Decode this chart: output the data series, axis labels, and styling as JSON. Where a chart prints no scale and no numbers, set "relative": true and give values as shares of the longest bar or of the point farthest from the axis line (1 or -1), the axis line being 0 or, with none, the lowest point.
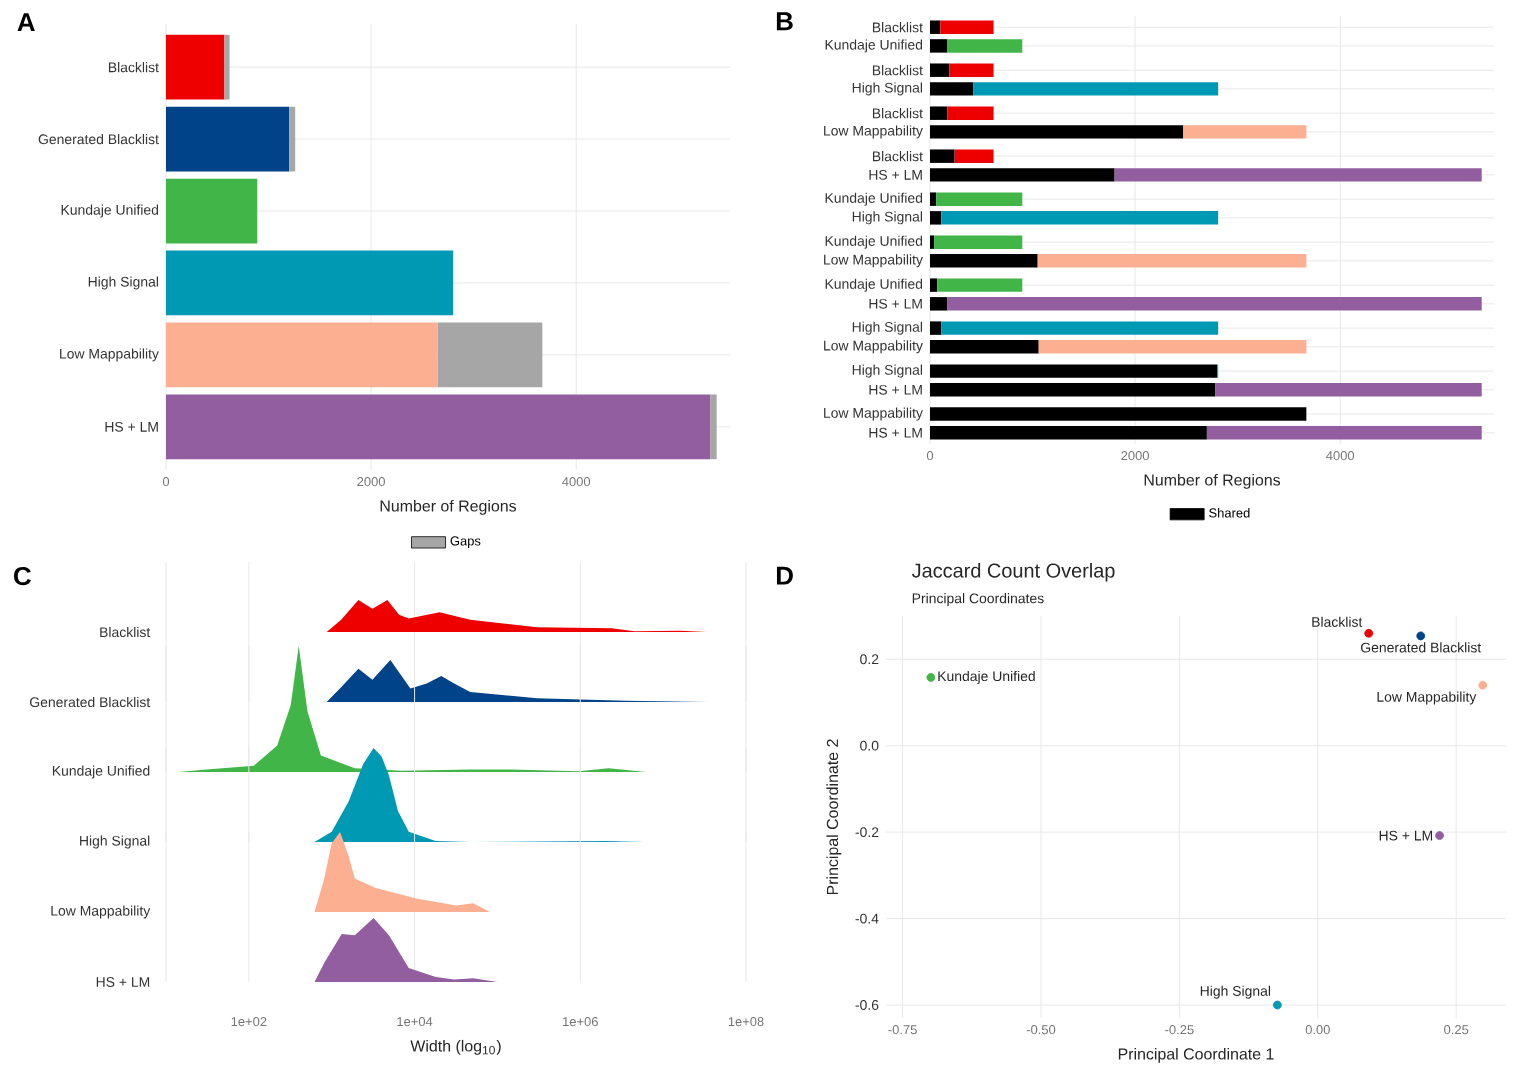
{
  "chart_data": [
    {
      "type": "bar",
      "orientation": "horizontal",
      "stacked": true,
      "categories": [
        "Blacklist",
        "Generated Blacklist",
        "Kundaje Unified",
        "High Signal",
        "Low Mappability",
        "HS + LM"
      ],
      "series": [
        {
          "colors": [
            "#ee0000",
            "#004388",
            "#41b547",
            "#0099b4",
            "#fdaf91",
            "#925e9f"
          ],
          "values": [
            570,
            1200,
            890,
            2800,
            2650,
            5310
          ]
        },
        {
          "name": "Gaps",
          "color": "#a6a6a6",
          "values": [
            50,
            60,
            null,
            null,
            1020,
            60
          ]
        }
      ],
      "xlabel": "Number of Regions",
      "xlim": [
        0,
        5500
      ],
      "xticks": [
        0,
        2000,
        4000
      ],
      "grid": true,
      "legend": "bottom",
      "annotations": [
        "A"
      ]
    },
    {
      "type": "bar",
      "orientation": "horizontal",
      "stacked": true,
      "categories": [
        "Blacklist",
        "Kundaje Unified",
        "Blacklist",
        "High Signal",
        "Blacklist",
        "Low Mappability",
        "Blacklist",
        "HS + LM",
        "Kundaje Unified",
        "High Signal",
        "Kundaje Unified",
        "Low Mappability",
        "Kundaje Unified",
        "HS + LM",
        "High Signal",
        "Low Mappability",
        "High Signal",
        "HS + LM",
        "Low Mappability",
        "HS + LM"
      ],
      "series": [
        {
          "name": "Shared",
          "color": "#000000",
          "values": [
            100,
            170,
            190,
            420,
            170,
            2470,
            240,
            1800,
            60,
            110,
            40,
            1050,
            70,
            170,
            110,
            1060,
            2800,
            2780,
            3670,
            2700
          ]
        },
        {
          "colors": [
            "#ee0000",
            "#41b547",
            "#ee0000",
            "#0099b4",
            "#ee0000",
            "#fdaf91",
            "#ee0000",
            "#925e9f",
            "#41b547",
            "#0099b4",
            "#41b547",
            "#fdaf91",
            "#41b547",
            "#925e9f",
            "#0099b4",
            "#fdaf91",
            "#0099b4",
            "#925e9f",
            "#fdaf91",
            "#925e9f"
          ],
          "values": [
            520,
            730,
            430,
            2390,
            450,
            1200,
            380,
            3580,
            840,
            2700,
            860,
            2620,
            830,
            5210,
            2700,
            2610,
            10,
            2600,
            0,
            2680
          ]
        }
      ],
      "xlabel": "Number of Regions",
      "xlim": [
        0,
        5500
      ],
      "xticks": [
        0,
        2000,
        4000
      ],
      "grid": true,
      "legend": "bottom",
      "annotations": [
        "B"
      ]
    },
    {
      "type": "area",
      "relative": true,
      "log": "x",
      "xlim": [
        10,
        100000000
      ],
      "xticks": [
        {
          "value": 10,
          "label": null
        },
        {
          "value": 100,
          "label": null
        },
        {
          "value": 10000,
          "label": null
        },
        {
          "value": 1000000,
          "label": null
        },
        {
          "value": 100000000,
          "label": null
        }
      ],
      "grid": "x",
      "tick_labels": false,
      "ylabel": "Blacklist",
      "series": [
        {
          "color": "#ee0000",
          "x": [
            870,
            1300,
            2100,
            3100,
            4700,
            6500,
            8500,
            20000,
            47000,
            300000,
            2400000,
            4500000,
            16000000,
            34000000
          ],
          "values": [
            0,
            0.38,
            1,
            0.73,
            1,
            0.54,
            0.42,
            0.62,
            0.38,
            0.15,
            0.12,
            0.02,
            0.04,
            0
          ]
        }
      ],
      "annotations": [
        "C"
      ]
    },
    {
      "type": "area",
      "relative": true,
      "log": "x",
      "xlim": [
        10,
        100000000
      ],
      "xticks": [
        {
          "value": 10,
          "label": null
        },
        {
          "value": 100,
          "label": null
        },
        {
          "value": 10000,
          "label": null
        },
        {
          "value": 1000000,
          "label": null
        },
        {
          "value": 100000000,
          "label": null
        }
      ],
      "grid": "x",
      "tick_labels": false,
      "ylabel": "Generated Blacklist",
      "series": [
        {
          "color": "#004388",
          "x": [
            870,
            1300,
            2100,
            3100,
            5100,
            8900,
            14000,
            21000,
            30000,
            47000,
            300000,
            3500000,
            34000000
          ],
          "values": [
            0,
            0.35,
            0.79,
            0.53,
            1,
            0.32,
            0.44,
            0.62,
            0.44,
            0.24,
            0.09,
            0.03,
            0
          ]
        }
      ]
    },
    {
      "type": "area",
      "relative": true,
      "log": "x",
      "xlim": [
        10,
        100000000
      ],
      "xticks": [
        {
          "value": 10,
          "label": null
        },
        {
          "value": 100,
          "label": null
        },
        {
          "value": 10000,
          "label": null
        },
        {
          "value": 1000000,
          "label": null
        },
        {
          "value": 100000000,
          "label": null
        }
      ],
      "grid": "x",
      "tick_labels": false,
      "ylabel": "Kundaje Unified",
      "series": [
        {
          "color": "#41b547",
          "x": [
            14,
            31,
            115,
            220,
            320,
            400,
            510,
            740,
            1900,
            7000,
            47000,
            145000,
            950000,
            2200000,
            6200000
          ],
          "values": [
            0,
            0.02,
            0.05,
            0.21,
            0.53,
            1,
            0.48,
            0.13,
            0.03,
            0.01,
            0.02,
            0.02,
            0.005,
            0.03,
            0
          ]
        }
      ]
    },
    {
      "type": "area",
      "relative": true,
      "log": "x",
      "xlim": [
        10,
        100000000
      ],
      "xticks": [
        {
          "value": 10,
          "label": null
        },
        {
          "value": 100,
          "label": null
        },
        {
          "value": 10000,
          "label": null
        },
        {
          "value": 1000000,
          "label": null
        },
        {
          "value": 100000000,
          "label": null
        }
      ],
      "grid": "x",
      "tick_labels": false,
      "ylabel": "High Signal",
      "series": [
        {
          "color": "#0099b4",
          "x": [
            620,
            1000,
            1600,
            2400,
            3200,
            4000,
            4900,
            6300,
            8500,
            18000,
            47000,
            2000000,
            6000000
          ],
          "values": [
            0,
            0.11,
            0.43,
            0.83,
            1,
            0.91,
            0.71,
            0.33,
            0.11,
            0.01,
            0,
            0.01,
            0
          ]
        }
      ]
    },
    {
      "type": "area",
      "relative": true,
      "log": "x",
      "xlim": [
        10,
        100000000
      ],
      "xticks": [
        {
          "value": 10,
          "label": null
        },
        {
          "value": 100,
          "label": null
        },
        {
          "value": 10000,
          "label": null
        },
        {
          "value": 1000000,
          "label": null
        },
        {
          "value": 100000000,
          "label": null
        }
      ],
      "grid": "x",
      "tick_labels": false,
      "ylabel": "Low Mappability",
      "series": [
        {
          "color": "#fdaf91",
          "x": [
            620,
            800,
            1000,
            1260,
            1600,
            1900,
            3400,
            10500,
            32000,
            51000,
            81000
          ],
          "values": [
            0,
            0.39,
            0.86,
            1,
            0.7,
            0.42,
            0.3,
            0.17,
            0.08,
            0.11,
            0
          ]
        }
      ]
    },
    {
      "type": "area",
      "relative": true,
      "log": "x",
      "xlim": [
        10,
        100000000
      ],
      "xticks": [
        {
          "value": 10,
          "label": null
        },
        {
          "value": 100,
          "label": "1e+02"
        },
        {
          "value": 10000,
          "label": "1e+04"
        },
        {
          "value": 1000000,
          "label": "1e+06"
        },
        {
          "value": 100000000,
          "label": "1e+08"
        }
      ],
      "grid": "x",
      "tick_labels": "x",
      "ylabel": "HS + LM",
      "xlabel": "Width (log$_{10}$)",
      "series": [
        {
          "color": "#925e9f",
          "x": [
            620,
            820,
            1320,
            1900,
            3200,
            4900,
            8500,
            18000,
            30000,
            51000,
            100000
          ],
          "values": [
            0,
            0.31,
            0.75,
            0.73,
            1,
            0.73,
            0.22,
            0.08,
            0.04,
            0.06,
            0
          ]
        }
      ]
    },
    {
      "type": "scatter",
      "title": "Jaccard Count Overlap",
      "subtitle": "Principal Coordinates",
      "xlabel": "Principal Coordinate 1",
      "ylabel": "Principal Coordinate 2",
      "xlim": [
        -0.78,
        0.34
      ],
      "ylim": [
        -0.63,
        0.3
      ],
      "xticks": [
        {
          "value": -0.75,
          "label": "-0.75"
        },
        {
          "value": -0.5,
          "label": "-0.50"
        },
        {
          "value": -0.25,
          "label": "-0.25"
        },
        {
          "value": 0,
          "label": "0.00"
        },
        {
          "value": 0.25,
          "label": "0.25"
        }
      ],
      "yticks": [
        {
          "value": -0.6,
          "label": "-0.6"
        },
        {
          "value": -0.4,
          "label": "-0.4"
        },
        {
          "value": -0.2,
          "label": "-0.2"
        },
        {
          "value": 0,
          "label": "0.0"
        },
        {
          "value": 0.2,
          "label": "0.2"
        }
      ],
      "grid": true,
      "marker": "circle",
      "series": [
        {
          "name": "Blacklist",
          "color": "#ee0000",
          "x": [
            0.092
          ],
          "values": [
            0.26
          ]
        },
        {
          "name": "Generated Blacklist",
          "color": "#004388",
          "x": [
            0.186
          ],
          "values": [
            0.254
          ]
        },
        {
          "name": "Kundaje Unified",
          "color": "#41b547",
          "x": [
            -0.699
          ],
          "values": [
            0.158
          ]
        },
        {
          "name": "High Signal",
          "color": "#0099b4",
          "x": [
            -0.073
          ],
          "values": [
            -0.6
          ]
        },
        {
          "name": "Low Mappability",
          "color": "#fdaf91",
          "x": [
            0.298
          ],
          "values": [
            0.14
          ]
        },
        {
          "name": "HS + LM",
          "color": "#925e9f",
          "x": [
            0.22
          ],
          "values": [
            -0.208
          ]
        }
      ],
      "annotations": [
        "D"
      ]
    }
  ]
}
